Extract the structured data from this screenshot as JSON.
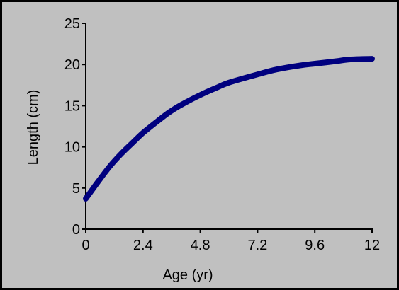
{
  "chart_data": {
    "type": "line",
    "title": "",
    "xlabel": "Age (yr)",
    "ylabel": "Length (cm)",
    "xlim": [
      0,
      12
    ],
    "ylim": [
      0,
      25
    ],
    "x_ticks": [
      "0",
      "2.4",
      "4.8",
      "7.2",
      "9.6",
      "12"
    ],
    "y_ticks": [
      "0",
      "5",
      "10",
      "15",
      "20",
      "25"
    ],
    "grid": false,
    "series": [
      {
        "color": "#00007f",
        "x": [
          0,
          0.5,
          1,
          1.5,
          2,
          2.4,
          3,
          3.5,
          4,
          4.8,
          5.5,
          6,
          7.2,
          8,
          9,
          9.6,
          10.5,
          11,
          12
        ],
        "y": [
          3.7,
          5.7,
          7.6,
          9.2,
          10.6,
          11.7,
          13.1,
          14.2,
          15.1,
          16.3,
          17.2,
          17.8,
          18.8,
          19.4,
          19.9,
          20.1,
          20.4,
          20.6,
          20.7
        ]
      }
    ]
  },
  "colors": {
    "background": "#c0c0c0",
    "line": "#00007f",
    "axes": "#000000"
  }
}
